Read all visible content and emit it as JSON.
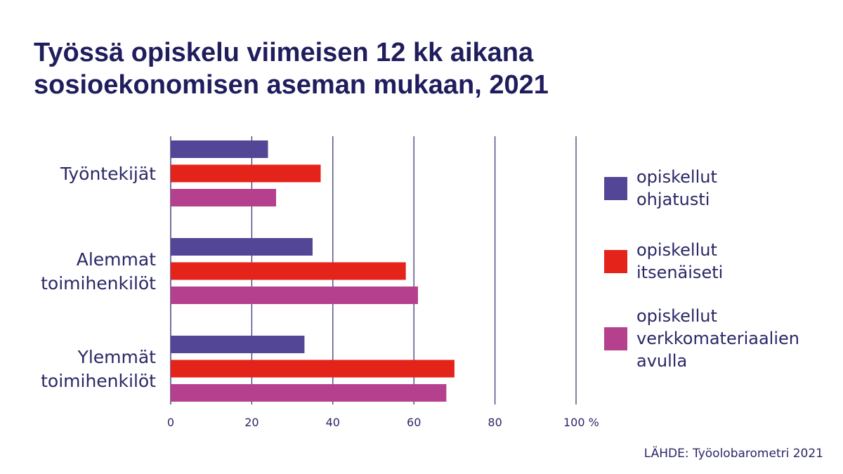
{
  "chart_data": {
    "type": "bar",
    "orientation": "horizontal",
    "title": [
      "Työssä opiskelu viimeisen 12 kk aikana",
      "sosioekonomisen aseman mukaan, 2021"
    ],
    "categories": [
      [
        "Työntekijät"
      ],
      [
        "Alemmat",
        "toimihenkilöt"
      ],
      [
        "Ylemmät",
        "toimihenkilöt"
      ]
    ],
    "series": [
      {
        "name": [
          "opiskellut",
          "ohjatusti"
        ],
        "color": "#544696",
        "values": [
          24,
          35,
          33
        ]
      },
      {
        "name": [
          "opiskellut",
          "itsenäiseti"
        ],
        "color": "#e4231b",
        "values": [
          37,
          58,
          70
        ]
      },
      {
        "name": [
          "opiskellut",
          "verkkomateriaalien",
          "avulla"
        ],
        "color": "#b5408d",
        "values": [
          26,
          61,
          68
        ]
      }
    ],
    "xlim": [
      0,
      100
    ],
    "xticks": [
      "0",
      "20",
      "40",
      "60",
      "80",
      "100 %"
    ],
    "grid": true,
    "legend": "right",
    "source": "LÄHDE: Työolobarometri 2021"
  }
}
